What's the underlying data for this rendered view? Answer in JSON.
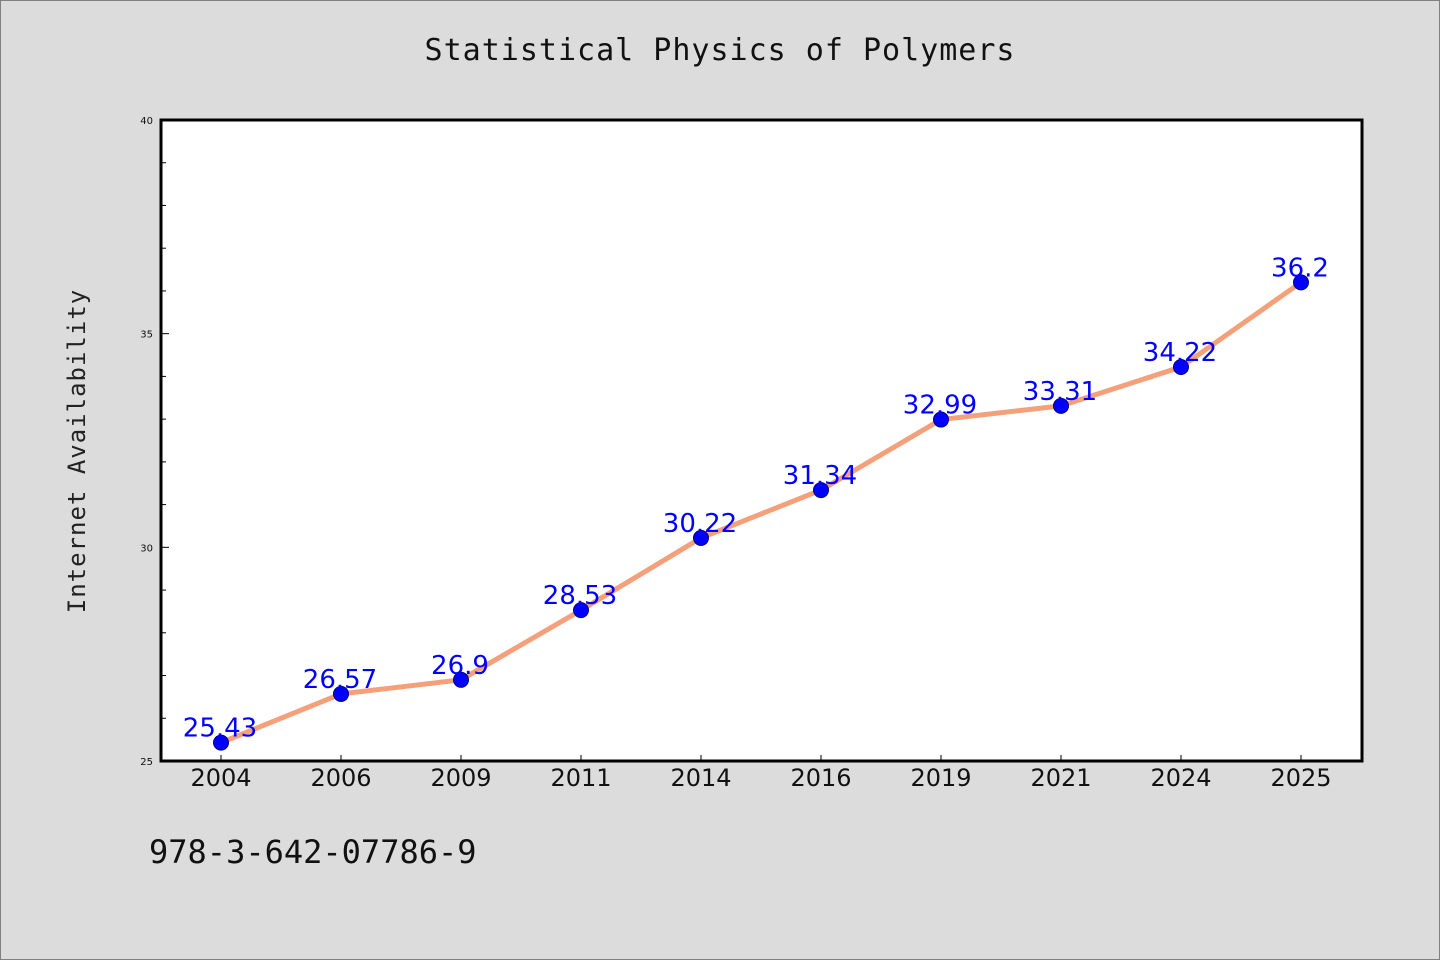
{
  "chart_data": {
    "type": "line",
    "title": "Statistical Physics of Polymers",
    "xlabel": "",
    "ylabel": "Internet Availability",
    "categories": [
      "2004",
      "2006",
      "2009",
      "2011",
      "2014",
      "2016",
      "2019",
      "2021",
      "2024",
      "2025"
    ],
    "series": [
      {
        "values": [
          25.43,
          26.57,
          26.9,
          28.53,
          30.22,
          31.34,
          32.99,
          33.31,
          34.22,
          36.2
        ],
        "labels": [
          "25.43",
          "26.57",
          "26.9",
          "28.53",
          "30.22",
          "31.34",
          "32.99",
          "33.31",
          "34.22",
          "36.2"
        ],
        "line_color": "#f4a07a",
        "marker_color": "#0000ff"
      }
    ],
    "ylim": [
      25,
      40
    ],
    "yticks": [
      25,
      30,
      35,
      40
    ],
    "ytick_labels": [
      "25",
      "30",
      "35",
      "40"
    ],
    "minor_ytick_step": 1,
    "grid": false,
    "legend": "none"
  },
  "footer": {
    "isbn": "978-3-642-07786-9"
  }
}
